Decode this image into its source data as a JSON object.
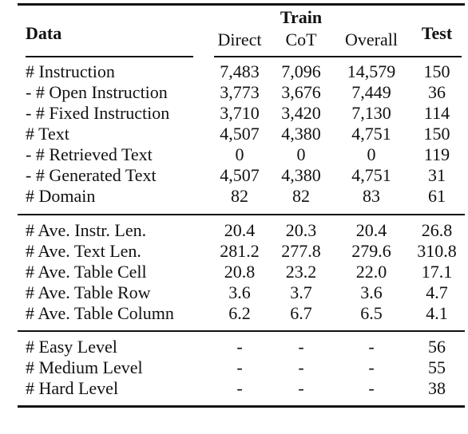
{
  "header": {
    "data_label": "Data",
    "train_label": "Train",
    "test_label": "Test",
    "sub_columns": [
      "Direct",
      "CoT",
      "Overall"
    ]
  },
  "sections": [
    {
      "rows": [
        {
          "label": "# Instruction",
          "direct": "7,483",
          "cot": "7,096",
          "overall": "14,579",
          "test": "150"
        },
        {
          "label": "- # Open Instruction",
          "direct": "3,773",
          "cot": "3,676",
          "overall": "7,449",
          "test": "36"
        },
        {
          "label": "- # Fixed Instruction",
          "direct": "3,710",
          "cot": "3,420",
          "overall": "7,130",
          "test": "114"
        },
        {
          "label": "# Text",
          "direct": "4,507",
          "cot": "4,380",
          "overall": "4,751",
          "test": "150"
        },
        {
          "label": "- # Retrieved Text",
          "direct": "0",
          "cot": "0",
          "overall": "0",
          "test": "119"
        },
        {
          "label": "- # Generated Text",
          "direct": "4,507",
          "cot": "4,380",
          "overall": "4,751",
          "test": "31"
        },
        {
          "label": "# Domain",
          "direct": "82",
          "cot": "82",
          "overall": "83",
          "test": "61"
        }
      ]
    },
    {
      "rows": [
        {
          "label": "# Ave. Instr. Len.",
          "direct": "20.4",
          "cot": "20.3",
          "overall": "20.4",
          "test": "26.8"
        },
        {
          "label": "# Ave. Text Len.",
          "direct": "281.2",
          "cot": "277.8",
          "overall": "279.6",
          "test": "310.8"
        },
        {
          "label": "# Ave. Table Cell",
          "direct": "20.8",
          "cot": "23.2",
          "overall": "22.0",
          "test": "17.1"
        },
        {
          "label": "# Ave. Table Row",
          "direct": "3.6",
          "cot": "3.7",
          "overall": "3.6",
          "test": "4.7"
        },
        {
          "label": "# Ave. Table Column",
          "direct": "6.2",
          "cot": "6.7",
          "overall": "6.5",
          "test": "4.1"
        }
      ]
    },
    {
      "rows": [
        {
          "label": "# Easy Level",
          "direct": "-",
          "cot": "-",
          "overall": "-",
          "test": "56"
        },
        {
          "label": "# Medium Level",
          "direct": "-",
          "cot": "-",
          "overall": "-",
          "test": "55"
        },
        {
          "label": "# Hard Level",
          "direct": "-",
          "cot": "-",
          "overall": "-",
          "test": "38"
        }
      ]
    }
  ]
}
